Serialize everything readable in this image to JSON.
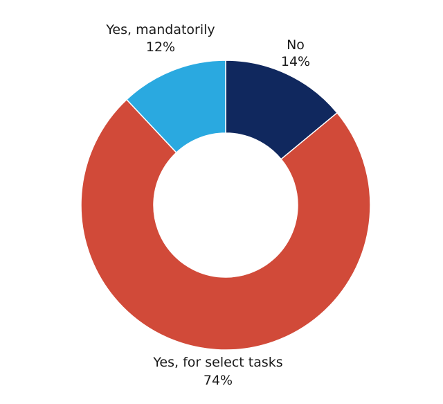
{
  "chart_data": {
    "type": "pie",
    "variant": "donut",
    "title": "",
    "slices": [
      {
        "label": "No",
        "value": 14,
        "value_label": "14%",
        "color": "#10285e"
      },
      {
        "label": "Yes, for select tasks",
        "value": 74,
        "value_label": "74%",
        "color": "#d14a39"
      },
      {
        "label": "Yes, mandatorily",
        "value": 12,
        "value_label": "12%",
        "color": "#2aa9e0"
      }
    ],
    "legend": "none",
    "start": "top, clockwise"
  }
}
